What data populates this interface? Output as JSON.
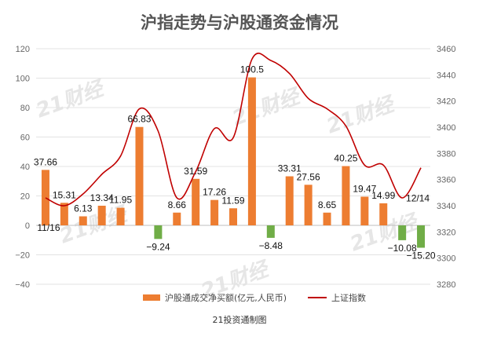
{
  "chart_data": {
    "type": "bar+line",
    "title": "沪指走势与沪股通资金情况",
    "source": "21投资通制图",
    "watermark": "21财经",
    "start_label": "11/16",
    "end_label": "12/14",
    "y_left": {
      "min": -40,
      "max": 120,
      "step": 20
    },
    "y_right": {
      "min": 3280,
      "max": 3460,
      "step": 20
    },
    "series": [
      {
        "name": "沪股通成交净买额(亿元,人民币)",
        "type": "bar",
        "axis": "left",
        "positive_color": "#ed7d31",
        "negative_color": "#70ad47",
        "values": [
          37.66,
          15.31,
          6.13,
          13.34,
          11.95,
          66.83,
          -9.24,
          8.66,
          31.59,
          17.26,
          11.59,
          100.5,
          -8.48,
          33.31,
          27.56,
          8.65,
          40.25,
          19.47,
          14.99,
          -10.08,
          -15.2
        ],
        "labels": [
          "37.66",
          "15.31",
          "6.13",
          "13.34",
          "11.95",
          "66.83",
          "−9.24",
          "8.66",
          "31.59",
          "17.26",
          "11.59",
          "100.5",
          "−8.48",
          "33.31",
          "27.56",
          "8.65",
          "40.25",
          "19.47",
          "14.99",
          "−10.08",
          "−15.20"
        ]
      },
      {
        "name": "上证指数",
        "type": "line",
        "axis": "right",
        "color": "#c00000",
        "values": [
          3346,
          3340,
          3349,
          3364,
          3378,
          3414,
          3397,
          3346,
          3366,
          3399,
          3392,
          3452,
          3451,
          3441,
          3422,
          3414,
          3401,
          3371,
          3371,
          3346,
          3369
        ]
      }
    ],
    "legend": {
      "position": "bottom"
    }
  }
}
